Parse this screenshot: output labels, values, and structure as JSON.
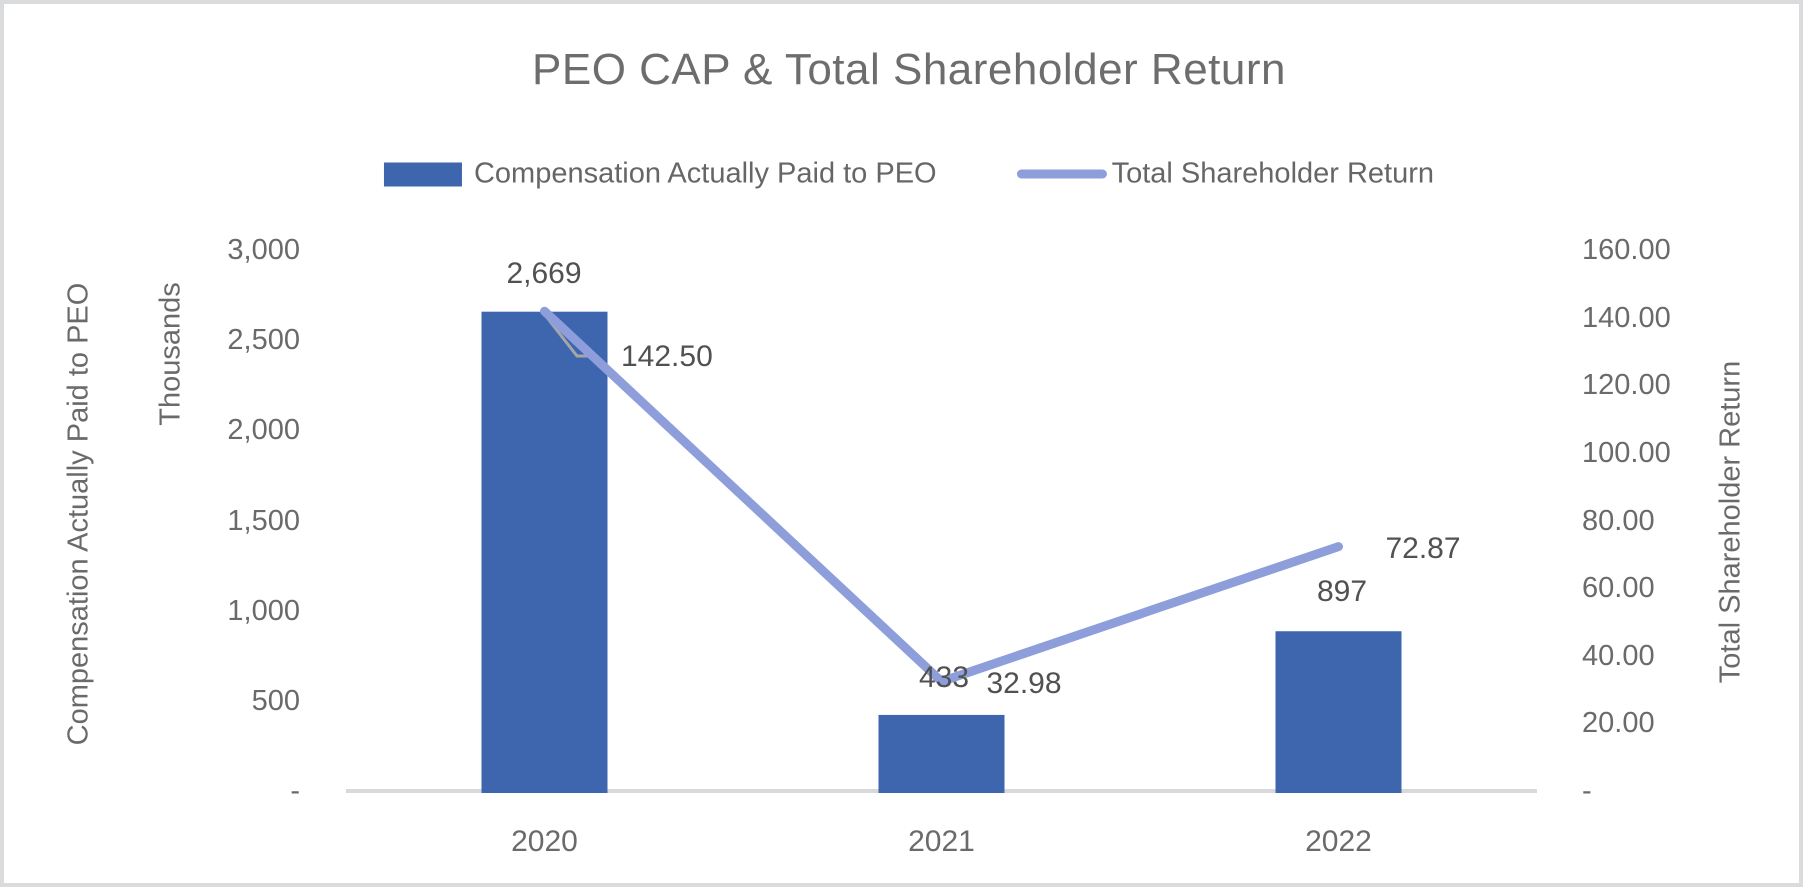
{
  "title": "PEO CAP & Total Shareholder Return",
  "legend": [
    {
      "label": "Compensation Actually Paid to PEO",
      "marker": "bar-swatch"
    },
    {
      "label": "Total Shareholder Return",
      "marker": "line-swatch"
    }
  ],
  "left_axis": {
    "title": "Compensation Actually Paid to PEO",
    "units_label": "Thousands",
    "ticks": [
      "3,000",
      "2,500",
      "2,000",
      "1,500",
      "1,000",
      "500",
      "-"
    ]
  },
  "right_axis": {
    "title": "Total Shareholder Return",
    "ticks": [
      "160.00",
      "140.00",
      "120.00",
      "100.00",
      "80.00",
      "60.00",
      "40.00",
      "20.00",
      "-"
    ]
  },
  "chart_data": {
    "type": "bar+line combo",
    "title": "PEO CAP & Total Shareholder Return",
    "categories": [
      "2020",
      "2021",
      "2022"
    ],
    "series": [
      {
        "name": "Compensation Actually Paid to PEO",
        "type": "bar",
        "axis": "left",
        "values": [
          2669,
          433,
          897
        ],
        "labels": [
          "2,669",
          "433",
          "897"
        ]
      },
      {
        "name": "Total Shareholder Return",
        "type": "line",
        "axis": "right",
        "values": [
          142.5,
          32.98,
          72.87
        ],
        "labels": [
          "142.50",
          "32.98",
          "72.87"
        ]
      }
    ],
    "left_ylim": [
      0,
      3000
    ],
    "left_units": "Thousands",
    "right_ylim": [
      0,
      160
    ],
    "grid": false,
    "legend_position": "top"
  },
  "colors": {
    "bar": "#3E66AE",
    "line": "#8D9EDA",
    "leader_line": "#A6A6A6",
    "axis_line": "#D9D9D9",
    "text": "#6A6A6A",
    "data_label_text": "#515151",
    "frame_border": "#D9DBDD"
  }
}
